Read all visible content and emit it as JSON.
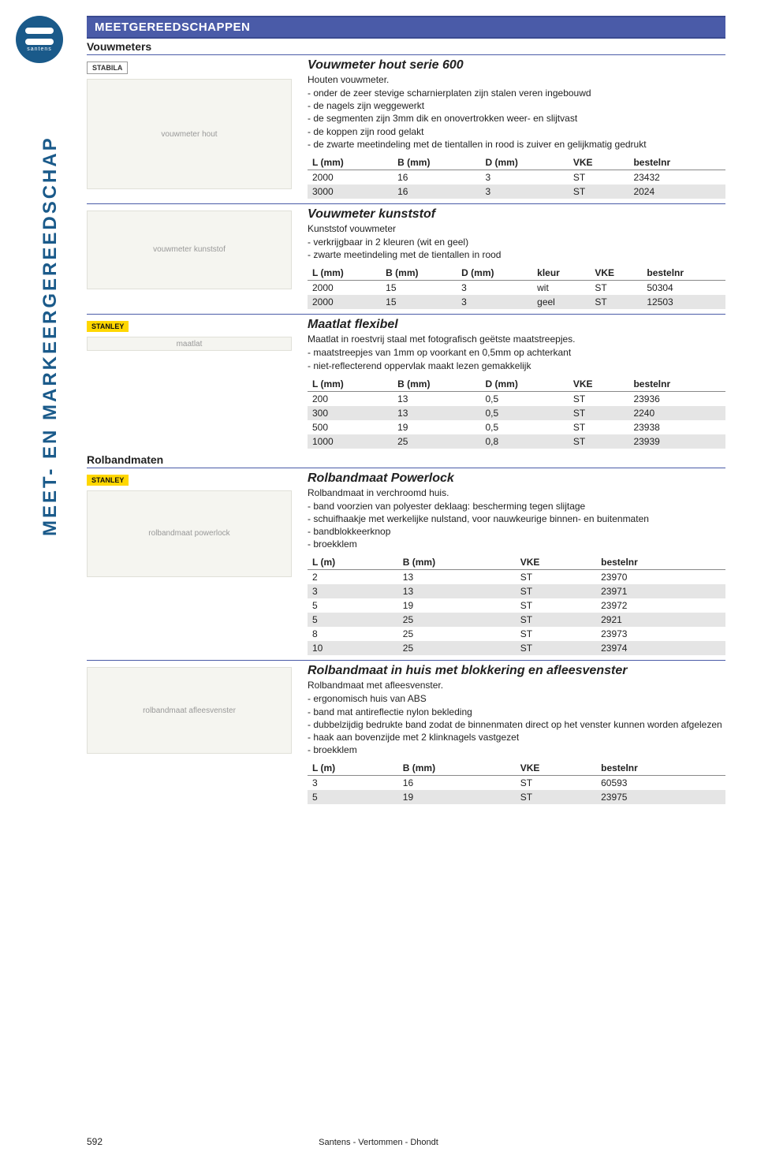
{
  "sidebar": {
    "logo_text": "santens",
    "vertical_text": "MEET- EN MARKEERGEREEDSCHAP"
  },
  "category_header": "MEETGEREEDSCHAPPEN",
  "sections": {
    "vouwmeters": {
      "label": "Vouwmeters"
    },
    "rolbandmaten": {
      "label": "Rolbandmaten"
    }
  },
  "products": {
    "vouwmeter_hout": {
      "brand": "STABILA",
      "title": "Vouwmeter hout serie 600",
      "subtitle": "Houten vouwmeter.",
      "desc": "- onder de zeer stevige scharnierplaten zijn stalen veren ingebouwd\n- de nagels zijn weggewerkt\n- de segmenten zijn 3mm dik en onovertrokken weer- en slijtvast\n- de koppen zijn rood gelakt\n- de zwarte meetindeling met de tientallen in rood is zuiver en gelijkmatig gedrukt",
      "table": {
        "headers": [
          "L (mm)",
          "B (mm)",
          "D (mm)",
          "VKE",
          "bestelnr"
        ],
        "rows": [
          [
            "2000",
            "16",
            "3",
            "ST",
            "23432"
          ],
          [
            "3000",
            "16",
            "3",
            "ST",
            "2024"
          ]
        ]
      }
    },
    "vouwmeter_kunststof": {
      "title": "Vouwmeter kunststof",
      "subtitle": "Kunststof vouwmeter",
      "desc": "- verkrijgbaar in 2 kleuren (wit en geel)\n- zwarte meetindeling met de tientallen in rood",
      "table": {
        "headers": [
          "L (mm)",
          "B (mm)",
          "D (mm)",
          "kleur",
          "VKE",
          "bestelnr"
        ],
        "rows": [
          [
            "2000",
            "15",
            "3",
            "wit",
            "ST",
            "50304"
          ],
          [
            "2000",
            "15",
            "3",
            "geel",
            "ST",
            "12503"
          ]
        ]
      }
    },
    "maatlat_flexibel": {
      "brand": "STANLEY",
      "title": "Maatlat flexibel",
      "subtitle": "Maatlat in roestvrij staal met fotografisch geëtste maatstreepjes.",
      "desc": "- maatstreepjes van 1mm op voorkant en 0,5mm op achterkant\n- niet-reflecterend oppervlak maakt lezen gemakkelijk",
      "table": {
        "headers": [
          "L (mm)",
          "B (mm)",
          "D (mm)",
          "VKE",
          "bestelnr"
        ],
        "rows": [
          [
            "200",
            "13",
            "0,5",
            "ST",
            "23936"
          ],
          [
            "300",
            "13",
            "0,5",
            "ST",
            "2240"
          ],
          [
            "500",
            "19",
            "0,5",
            "ST",
            "23938"
          ],
          [
            "1000",
            "25",
            "0,8",
            "ST",
            "23939"
          ]
        ]
      }
    },
    "rolbandmaat_powerlock": {
      "brand": "STANLEY",
      "title": "Rolbandmaat Powerlock",
      "subtitle": "Rolbandmaat in verchroomd huis.",
      "desc": "- band voorzien van polyester deklaag: bescherming tegen slijtage\n- schuifhaakje met werkelijke nulstand, voor nauwkeurige binnen- en buitenmaten\n- bandblokkeerknop\n- broekklem",
      "table": {
        "headers": [
          "L (m)",
          "B (mm)",
          "VKE",
          "bestelnr"
        ],
        "rows": [
          [
            "2",
            "13",
            "ST",
            "23970"
          ],
          [
            "3",
            "13",
            "ST",
            "23971"
          ],
          [
            "5",
            "19",
            "ST",
            "23972"
          ],
          [
            "5",
            "25",
            "ST",
            "2921"
          ],
          [
            "8",
            "25",
            "ST",
            "23973"
          ],
          [
            "10",
            "25",
            "ST",
            "23974"
          ]
        ]
      }
    },
    "rolbandmaat_huis": {
      "title": "Rolbandmaat in huis met blokkering en afleesvenster",
      "subtitle": "Rolbandmaat met afleesvenster.",
      "desc": "- ergonomisch huis van ABS\n- band mat antireflectie nylon bekleding\n- dubbelzijdig bedrukte band zodat de binnenmaten direct op het venster kunnen worden afgelezen\n- haak aan bovenzijde met 2 klinknagels vastgezet\n- broekklem",
      "table": {
        "headers": [
          "L (m)",
          "B (mm)",
          "VKE",
          "bestelnr"
        ],
        "rows": [
          [
            "3",
            "16",
            "ST",
            "60593"
          ],
          [
            "5",
            "19",
            "ST",
            "23975"
          ]
        ]
      }
    }
  },
  "footer": "Santens - Vertommen - Dhondt",
  "page_number": "592",
  "table_style": {
    "alt_row_bg": "#e5e5e5",
    "header_border": "#888888"
  },
  "colors": {
    "header_bg": "#4a5ba8",
    "header_border": "#3a4a90",
    "brand_blue": "#1a5a8a",
    "stanley_yellow": "#ffd700"
  }
}
